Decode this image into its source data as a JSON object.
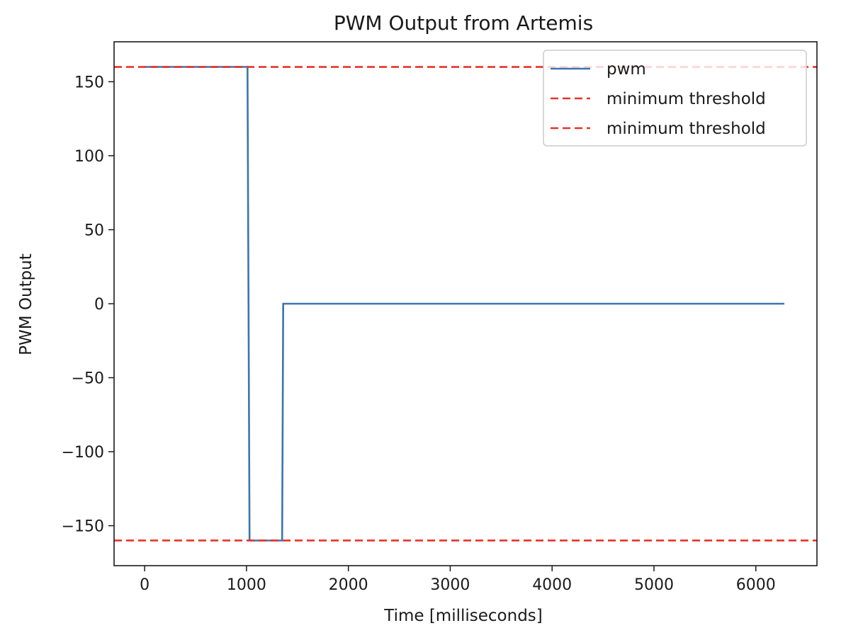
{
  "chart_data": {
    "type": "line",
    "title": "PWM Output from Artemis",
    "xlabel": "Time [milliseconds]",
    "ylabel": "PWM Output",
    "xlim": [
      -300,
      6600
    ],
    "ylim": [
      -177,
      177
    ],
    "xticks": [
      0,
      1000,
      2000,
      3000,
      4000,
      5000,
      6000
    ],
    "xtick_labels": [
      "0",
      "1000",
      "2000",
      "3000",
      "4000",
      "5000",
      "6000"
    ],
    "yticks": [
      150,
      100,
      50,
      0,
      -50,
      -100,
      -150
    ],
    "ytick_labels": [
      "150",
      "100",
      "50",
      "0",
      "−50",
      "−100",
      "−150"
    ],
    "grid": false,
    "legend_position": "top-right",
    "series": [
      {
        "name": "pwm",
        "color": "#3b75af",
        "style": "solid",
        "x": [
          0,
          1010,
          1030,
          1350,
          1360,
          6280
        ],
        "y": [
          160,
          160,
          -160,
          -160,
          0,
          0
        ]
      },
      {
        "name": "minimum threshold",
        "color": "#e5342a",
        "style": "dashed",
        "hline": 160
      },
      {
        "name": "minimum threshold",
        "color": "#e5342a",
        "style": "dashed",
        "hline": -160
      }
    ]
  }
}
